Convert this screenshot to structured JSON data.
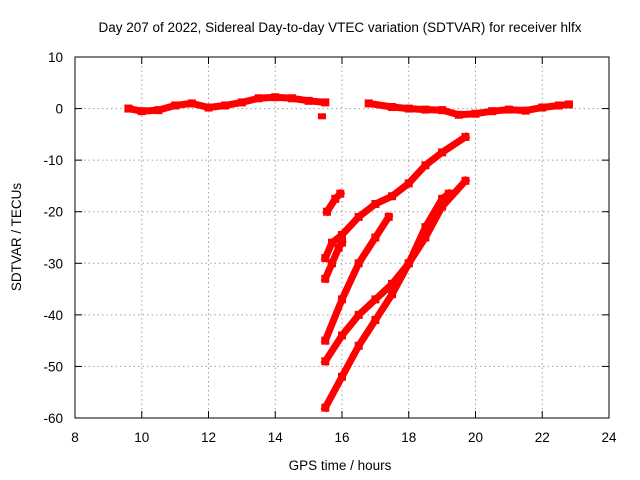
{
  "chart_data": {
    "type": "scatter",
    "title": "Day 207 of 2022, Sidereal Day-to-day VTEC variation (SDTVAR) for receiver hlfx",
    "xlabel": "GPS time / hours",
    "ylabel": "SDTVAR / TECUs",
    "xlim": [
      8,
      24
    ],
    "ylim": [
      -60,
      10
    ],
    "xticks": [
      8,
      10,
      12,
      14,
      16,
      18,
      20,
      22,
      24
    ],
    "yticks": [
      -60,
      -50,
      -40,
      -30,
      -20,
      -10,
      0,
      10
    ],
    "grid": true,
    "series_color": "#ff0000",
    "series": [
      {
        "name": "baseline-morning",
        "points": [
          [
            9.6,
            0
          ],
          [
            10,
            -0.5
          ],
          [
            10.5,
            -0.3
          ],
          [
            11,
            0.6
          ],
          [
            11.5,
            1
          ],
          [
            12,
            0.2
          ],
          [
            12.5,
            0.6
          ],
          [
            13,
            1.2
          ],
          [
            13.5,
            2
          ],
          [
            14,
            2.2
          ],
          [
            14.5,
            2
          ],
          [
            15,
            1.5
          ],
          [
            15.5,
            1.2
          ]
        ]
      },
      {
        "name": "outlier",
        "points": [
          [
            15.4,
            -1.5
          ]
        ]
      },
      {
        "name": "baseline-evening",
        "points": [
          [
            16.8,
            1
          ],
          [
            17.5,
            0.3
          ],
          [
            18,
            0
          ],
          [
            18.5,
            -0.2
          ],
          [
            19,
            -0.3
          ],
          [
            19.5,
            -1.2
          ],
          [
            20,
            -1
          ],
          [
            20.5,
            -0.5
          ],
          [
            21,
            -0.2
          ],
          [
            21.5,
            -0.4
          ],
          [
            22,
            0.2
          ],
          [
            22.5,
            0.6
          ],
          [
            22.8,
            0.8
          ]
        ]
      },
      {
        "name": "track-a",
        "points": [
          [
            15.55,
            -20
          ],
          [
            15.8,
            -17.5
          ],
          [
            15.95,
            -16.5
          ]
        ]
      },
      {
        "name": "track-b",
        "points": [
          [
            15.5,
            -29
          ],
          [
            15.7,
            -26
          ],
          [
            16,
            -24.5
          ],
          [
            16.5,
            -21
          ],
          [
            17,
            -18.5
          ],
          [
            17.5,
            -17
          ],
          [
            18,
            -14.5
          ],
          [
            18.5,
            -11
          ],
          [
            19,
            -8.5
          ],
          [
            19.7,
            -5.5
          ]
        ]
      },
      {
        "name": "track-c",
        "points": [
          [
            15.5,
            -33
          ],
          [
            15.7,
            -30
          ],
          [
            15.9,
            -27
          ],
          [
            16,
            -26
          ]
        ]
      },
      {
        "name": "track-d",
        "points": [
          [
            15.5,
            -45
          ],
          [
            16,
            -37
          ],
          [
            16.5,
            -30
          ],
          [
            17,
            -25
          ],
          [
            17.4,
            -21
          ]
        ]
      },
      {
        "name": "track-e",
        "points": [
          [
            15.5,
            -49
          ],
          [
            16,
            -44
          ],
          [
            16.5,
            -40
          ],
          [
            17,
            -37
          ],
          [
            17.5,
            -34
          ],
          [
            18,
            -30
          ],
          [
            18.5,
            -25
          ],
          [
            19,
            -19
          ],
          [
            19.7,
            -14
          ]
        ]
      },
      {
        "name": "track-f",
        "points": [
          [
            15.5,
            -58
          ],
          [
            16,
            -52
          ],
          [
            16.5,
            -46
          ],
          [
            17,
            -41
          ],
          [
            17.5,
            -36
          ],
          [
            18,
            -30
          ],
          [
            18.5,
            -23
          ],
          [
            19,
            -17.5
          ],
          [
            19.2,
            -16.5
          ]
        ]
      }
    ]
  }
}
